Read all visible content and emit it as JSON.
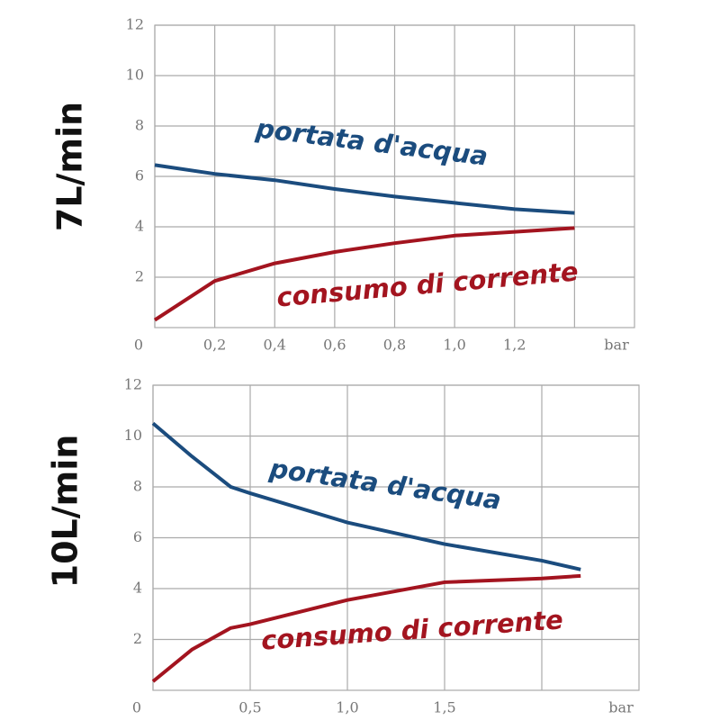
{
  "chart_data": [
    {
      "type": "line",
      "side_label": "7L/min",
      "xlabel": "bar",
      "xlim": [
        0,
        1.6
      ],
      "ylim": [
        0,
        12
      ],
      "xticks": [
        0,
        {
          "value": 0.2,
          "label": "0,2"
        },
        {
          "value": 0.4,
          "label": "0,4"
        },
        {
          "value": 0.6,
          "label": "0,6"
        },
        {
          "value": 0.8,
          "label": "0,8"
        },
        {
          "value": 1.0,
          "label": "1,0"
        },
        {
          "value": 1.2,
          "label": "1,2"
        }
      ],
      "yticks": [
        2,
        4,
        6,
        8,
        10,
        12
      ],
      "grid": true,
      "x": [
        0,
        0.2,
        0.4,
        0.6,
        0.8,
        1.0,
        1.2,
        1.4
      ],
      "series": [
        {
          "name": "portata d'acqua",
          "color": "#1b4c7e",
          "values": [
            6.45,
            6.1,
            5.85,
            5.5,
            5.2,
            4.95,
            4.7,
            4.55
          ]
        },
        {
          "name": "consumo di corrente",
          "color": "#a3141f",
          "values": [
            0.3,
            1.85,
            2.55,
            3.0,
            3.35,
            3.65,
            3.8,
            3.95
          ]
        }
      ]
    },
    {
      "type": "line",
      "side_label": "10L/min",
      "xlabel": "bar",
      "xlim": [
        0,
        2.5
      ],
      "ylim": [
        0,
        12
      ],
      "xticks": [
        0,
        {
          "value": 0.5,
          "label": "0,5"
        },
        {
          "value": 1.0,
          "label": "1,0"
        },
        {
          "value": 1.5,
          "label": "1,5"
        }
      ],
      "yticks": [
        2,
        4,
        6,
        8,
        10,
        12
      ],
      "grid": true,
      "x": [
        0,
        0.2,
        0.4,
        0.5,
        1.0,
        1.5,
        2.0,
        2.2
      ],
      "series": [
        {
          "name": "portata d'acqua",
          "color": "#1b4c7e",
          "values": [
            10.5,
            9.2,
            8.0,
            7.75,
            6.6,
            5.75,
            5.1,
            4.75
          ]
        },
        {
          "name": "consumo di corrente",
          "color": "#a3141f",
          "values": [
            0.35,
            1.6,
            2.45,
            2.6,
            3.55,
            4.25,
            4.4,
            4.5
          ]
        }
      ]
    }
  ]
}
